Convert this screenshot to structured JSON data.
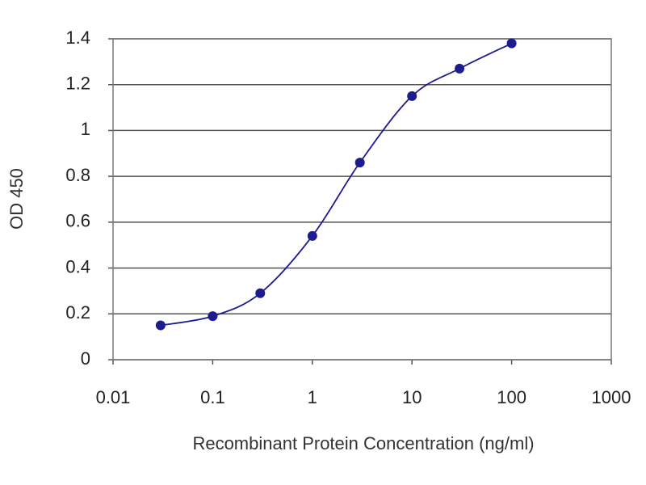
{
  "chart_data": {
    "type": "line",
    "x_label": "Recombinant Protein Concentration (ng/ml)",
    "y_label": "OD 450",
    "x": [
      0.03,
      0.1,
      0.3,
      1,
      3,
      10,
      30,
      100
    ],
    "series": [
      {
        "color": "#1c1c8f",
        "values": [
          0.15,
          0.19,
          0.29,
          0.54,
          0.86,
          1.15,
          1.27,
          1.38
        ]
      }
    ],
    "xscale": "log",
    "xlim": [
      0.01,
      1000
    ],
    "xticks": [
      0.01,
      0.1,
      1,
      10,
      100,
      1000
    ],
    "ylim": [
      0,
      1.4
    ],
    "yticks": [
      0,
      0.2,
      0.4,
      0.6,
      0.8,
      1,
      1.2,
      1.4
    ],
    "grid": true
  }
}
